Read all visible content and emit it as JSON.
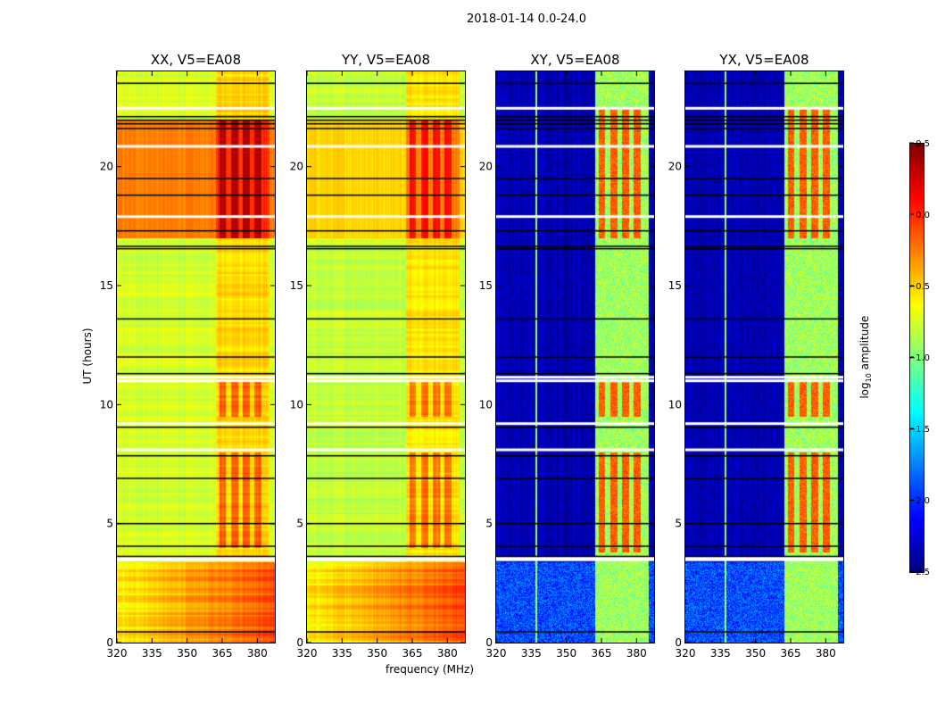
{
  "chart_data": {
    "type": "heatmap",
    "title": "2018-01-14 0.0-24.0",
    "xlabel": "frequency (MHz)",
    "ylabel": "UT (hours)",
    "xlim": [
      320,
      387.5
    ],
    "ylim": [
      0,
      24
    ],
    "xticks": [
      "320",
      "335",
      "350",
      "365",
      "380"
    ],
    "xtick_values": [
      320,
      335,
      350,
      365,
      380
    ],
    "yticks": [
      "0",
      "5",
      "10",
      "15",
      "20"
    ],
    "ytick_values": [
      0,
      5,
      10,
      15,
      20
    ],
    "colormap": "jet",
    "colorbar": {
      "label_prefix": "log",
      "label_sub": "10",
      "label_suffix": " amplitude",
      "range": [
        -2.5,
        0.5
      ],
      "ticks": [
        "0.5",
        "0.0",
        "−0.5",
        "−1.0",
        "−1.5",
        "−2.0",
        "−2.5"
      ],
      "tick_values": [
        0.5,
        0.0,
        -0.5,
        -1.0,
        -1.5,
        -2.0,
        -2.5
      ]
    },
    "panels": [
      {
        "title": "XX, V5=EA08",
        "kind": "parallel",
        "base": -0.75,
        "band_level": -0.2,
        "high_time_range": [
          17.0,
          22.0
        ],
        "high_time_level": -0.25
      },
      {
        "title": "YY, V5=EA08",
        "kind": "parallel",
        "base": -0.8,
        "band_level": -0.3,
        "high_time_range": [
          17.0,
          22.0
        ],
        "high_time_level": -0.5
      },
      {
        "title": "XY, V5=EA08",
        "kind": "cross",
        "base": -2.35,
        "band_level": -0.9,
        "stripe_level": -0.15
      },
      {
        "title": "YX, V5=EA08",
        "kind": "cross",
        "base": -2.35,
        "band_level": -0.9,
        "stripe_level": -0.15
      }
    ],
    "rfi_band_mhz": [
      362,
      385
    ],
    "stripe_bands_mhz": [
      [
        363.5,
        366.5
      ],
      [
        368.5,
        371.5
      ],
      [
        373.5,
        376.5
      ],
      [
        378.5,
        381.5
      ]
    ],
    "flag_white_ut": [
      22.45,
      20.85,
      17.9,
      11.15,
      11.0,
      9.2,
      8.1,
      3.58,
      3.48
    ],
    "flag_black_ut": [
      23.5,
      22.1,
      21.95,
      21.8,
      21.6,
      19.5,
      18.8,
      17.3,
      16.65,
      16.55,
      13.6,
      12.0,
      11.3,
      9.05,
      7.85,
      6.9,
      5.0,
      4.05,
      3.62,
      0.45
    ]
  }
}
